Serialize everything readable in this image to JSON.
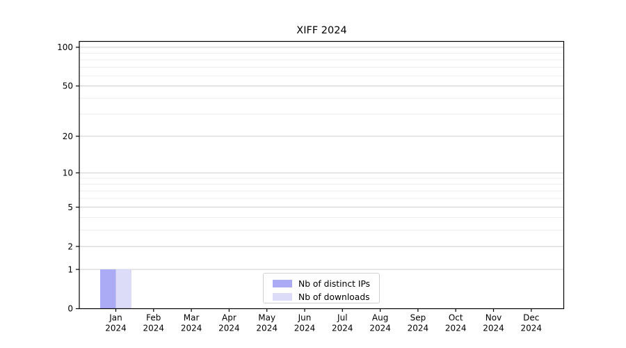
{
  "chart_data": {
    "type": "bar",
    "title": "XIFF 2024",
    "year_label": "2024",
    "categories": [
      "Jan",
      "Feb",
      "Mar",
      "Apr",
      "May",
      "Jun",
      "Jul",
      "Aug",
      "Sep",
      "Oct",
      "Nov",
      "Dec"
    ],
    "series": [
      {
        "name": "Nb of distinct IPs",
        "color": "#aaaaf5",
        "values": [
          1,
          0,
          0,
          0,
          0,
          0,
          0,
          0,
          0,
          0,
          0,
          0
        ]
      },
      {
        "name": "Nb of downloads",
        "color": "#dcdcf8",
        "values": [
          1,
          0,
          0,
          0,
          0,
          0,
          0,
          0,
          0,
          0,
          0,
          0
        ]
      }
    ],
    "yscale": "log1p",
    "ylim": [
      0,
      111
    ],
    "yticks": [
      0,
      1,
      2,
      5,
      10,
      20,
      50,
      100
    ],
    "minor_yticks": [
      3,
      4,
      6,
      7,
      8,
      9,
      30,
      40,
      60,
      70,
      80,
      90
    ],
    "grid": "on",
    "legend_position": "lower center"
  },
  "colors": {
    "major_grid": "#cecece",
    "minor_grid": "#ededed",
    "spine": "#000000",
    "text": "#000000"
  }
}
